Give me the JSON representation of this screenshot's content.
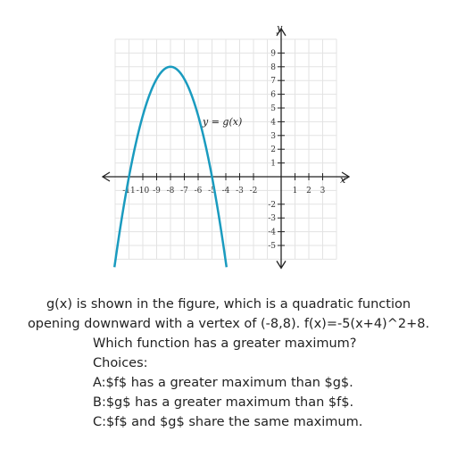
{
  "figure": {
    "x_axis_label": "x",
    "y_axis_label": "y",
    "curve_label": "y = g(x)",
    "curve_color": "#1a9bbf",
    "x_ticks": [
      "-11",
      "-10",
      "-9",
      "-8",
      "-7",
      "-6",
      "-5",
      "-4",
      "-3",
      "-2",
      "1",
      "2",
      "3"
    ],
    "y_ticks": [
      "9",
      "8",
      "7",
      "6",
      "5",
      "4",
      "3",
      "2",
      "1",
      "-2",
      "-3",
      "-4",
      "-5"
    ],
    "x_range": [
      -12,
      4
    ],
    "y_range": [
      -6,
      10
    ],
    "vertex": [
      -8,
      8
    ],
    "roots": [
      -11,
      -5
    ]
  },
  "question": {
    "line1": "g(x) is shown in the figure, which is a quadratic function",
    "line2": "opening downward with a vertex of (-8,8). f(x)=-5(x+4)^2+8.",
    "line3": "Which function has a greater maximum?",
    "choices_header": "Choices:",
    "choices": [
      "A:$f$ has a greater maximum than $g$.",
      "B:$g$ has a greater maximum than $f$.",
      "C:$f$ and $g$ share the same maximum."
    ]
  }
}
